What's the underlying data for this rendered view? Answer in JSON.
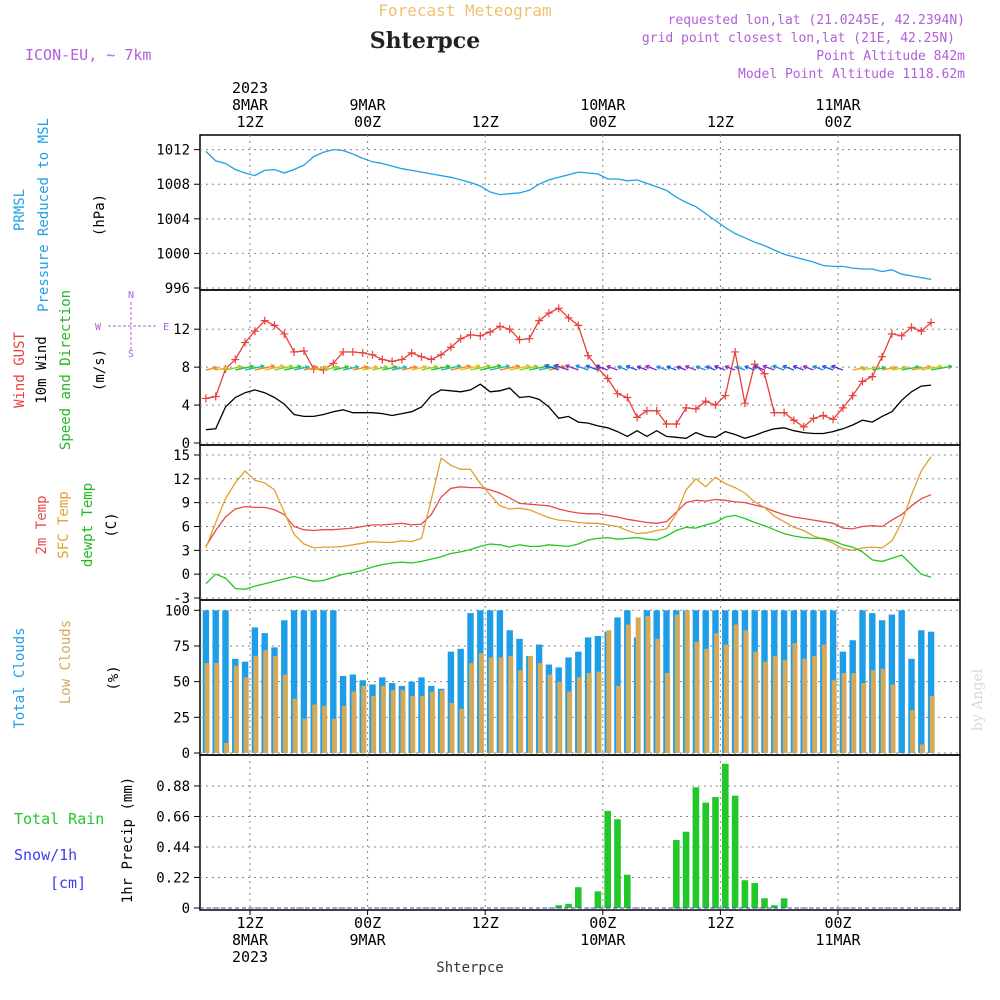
{
  "header": {
    "title": "Forecast Meteogram",
    "location": "Shterpce",
    "model": "ICON-EU, ~ 7km",
    "requested": "requested lon,lat (21.0245E, 42.2394N)",
    "gridpoint": "grid point closest lon,lat (21E, 42.25N)",
    "altitude": "Point Altitude 842m",
    "model_altitude": "Model Point Altitude 1118.62m",
    "footer": "Shterpce",
    "watermark": "by Angel"
  },
  "time_axis": {
    "top_labels": [
      {
        "hour": 0,
        "lines": [
          "2023",
          "8MAR",
          "12Z"
        ]
      },
      {
        "hour": 12,
        "lines": [
          "9MAR",
          "00Z"
        ]
      },
      {
        "hour": 24,
        "lines": [
          "12Z"
        ]
      },
      {
        "hour": 36,
        "lines": [
          "10MAR",
          "00Z"
        ]
      },
      {
        "hour": 48,
        "lines": [
          "12Z"
        ]
      },
      {
        "hour": 60,
        "lines": [
          "11MAR",
          "00Z"
        ]
      }
    ],
    "bottom_labels": [
      {
        "hour": 0,
        "lines": [
          "12Z",
          "8MAR",
          "2023"
        ]
      },
      {
        "hour": 12,
        "lines": [
          "00Z",
          "9MAR"
        ]
      },
      {
        "hour": 24,
        "lines": [
          "12Z"
        ]
      },
      {
        "hour": 36,
        "lines": [
          "00Z",
          "10MAR"
        ]
      },
      {
        "hour": 48,
        "lines": [
          "12Z"
        ]
      },
      {
        "hour": 60,
        "lines": [
          "00Z",
          "11MAR"
        ]
      }
    ]
  },
  "panels": {
    "pressure": {
      "labels": [
        "PRMSL",
        "Pressure Reduced to MSL"
      ],
      "unit": "(hPa)"
    },
    "wind": {
      "labels": [
        "Wind GUST",
        "10m Wind",
        "Speed and Direction"
      ],
      "unit": "(m/s)",
      "compass": {
        "n": "N",
        "e": "E",
        "s": "S",
        "w": "W"
      }
    },
    "temp": {
      "labels": [
        "2m Temp",
        "SFC Temp",
        "dewpt Temp"
      ],
      "unit": "(C)"
    },
    "clouds": {
      "labels": [
        "Total Clouds",
        "Low Clouds"
      ],
      "unit": "(%)"
    },
    "precip": {
      "labels": [
        "Total  Rain",
        "Snow/1h",
        "[cm]"
      ],
      "unit": "1hr Precip (mm)"
    }
  },
  "colors": {
    "pressure": "#1ea0e6",
    "gust": "#e8403c",
    "wind": "#000000",
    "temp2m": "#e84a4a",
    "sfc": "#e0a030",
    "dewpt": "#22c822",
    "total_clouds": "#1e9ee8",
    "low_clouds": "#d4aa5a",
    "rain": "#22c82a",
    "snow": "#3c3cf0",
    "header": "#b060d8",
    "title_faint": "#f0c070"
  },
  "chart_data": [
    {
      "type": "line",
      "title": "PRMSL Pressure Reduced to MSL",
      "ylabel": "hPa",
      "x_start_hour": -4.5,
      "x_step": 1,
      "ylim": [
        996,
        1013
      ],
      "yticks": [
        996,
        1000,
        1004,
        1008,
        1012
      ],
      "series": [
        {
          "name": "PRMSL",
          "values": [
            1011.8,
            1010.7,
            1010.4,
            1009.7,
            1009.3,
            1009.0,
            1009.6,
            1009.7,
            1009.3,
            1009.7,
            1010.2,
            1011.2,
            1011.7,
            1012.0,
            1011.9,
            1011.5,
            1011.0,
            1010.6,
            1010.4,
            1010.1,
            1009.8,
            1009.6,
            1009.4,
            1009.2,
            1009.0,
            1008.8,
            1008.5,
            1008.2,
            1007.8,
            1007.1,
            1006.8,
            1006.9,
            1007.0,
            1007.3,
            1008.0,
            1008.5,
            1008.8,
            1009.1,
            1009.4,
            1009.3,
            1009.2,
            1008.6,
            1008.6,
            1008.4,
            1008.5,
            1008.1,
            1007.7,
            1007.3,
            1006.5,
            1005.9,
            1005.4,
            1004.6,
            1003.8,
            1003.0,
            1002.3,
            1001.8,
            1001.3,
            1000.9,
            1000.4,
            999.9,
            999.6,
            999.3,
            999.0,
            998.6,
            998.5,
            998.5,
            998.3,
            998.2,
            998.2,
            997.9,
            998.1,
            997.6,
            997.4,
            997.2,
            997.0
          ]
        }
      ]
    },
    {
      "type": "line",
      "title": "Wind GUST / 10m Wind",
      "ylabel": "m/s",
      "x_start_hour": -4.5,
      "x_step": 1,
      "ylim": [
        0,
        15.5
      ],
      "yticks": [
        0,
        4,
        8,
        12
      ],
      "series": [
        {
          "name": "Wind GUST",
          "values": [
            4.7,
            4.9,
            7.8,
            8.8,
            10.6,
            11.8,
            12.9,
            12.4,
            11.5,
            9.6,
            9.7,
            7.8,
            7.7,
            8.4,
            9.6,
            9.6,
            9.5,
            9.3,
            8.8,
            8.6,
            8.8,
            9.5,
            9.1,
            8.8,
            9.3,
            10.1,
            11.0,
            11.4,
            11.3,
            11.7,
            12.3,
            12.0,
            10.9,
            11.0,
            12.9,
            13.7,
            14.2,
            13.2,
            12.4,
            9.2,
            7.9,
            6.8,
            5.2,
            4.8,
            2.7,
            3.4,
            3.4,
            2.0,
            2.0,
            3.7,
            3.6,
            4.4,
            4.0,
            5.0,
            9.6,
            4.2,
            8.3,
            7.3,
            3.2,
            3.2,
            2.4,
            1.7,
            2.6,
            2.9,
            2.5,
            3.7,
            5.0,
            6.5,
            7.0,
            9.1,
            11.5,
            11.3,
            12.2,
            11.8,
            12.7
          ]
        },
        {
          "name": "10m Wind",
          "values": [
            1.4,
            1.5,
            3.8,
            4.8,
            5.3,
            5.6,
            5.3,
            4.8,
            4.1,
            3.0,
            2.8,
            2.8,
            3.0,
            3.3,
            3.5,
            3.2,
            3.2,
            3.2,
            3.1,
            2.9,
            3.1,
            3.3,
            3.8,
            5.0,
            5.6,
            5.5,
            5.4,
            5.6,
            6.2,
            5.4,
            5.5,
            5.8,
            4.8,
            4.9,
            4.6,
            3.8,
            2.6,
            2.8,
            2.2,
            2.1,
            1.8,
            1.6,
            1.2,
            0.7,
            1.3,
            0.7,
            1.3,
            0.7,
            0.6,
            0.5,
            1.1,
            0.7,
            0.6,
            1.2,
            0.9,
            0.5,
            0.8,
            1.2,
            1.5,
            1.6,
            1.3,
            1.1,
            1.0,
            1.0,
            1.2,
            1.5,
            1.9,
            2.4,
            2.2,
            2.8,
            3.3,
            4.5,
            5.4,
            6.0,
            6.1
          ]
        }
      ]
    },
    {
      "type": "line",
      "title": "Temperatures",
      "ylabel": "C",
      "x_start_hour": -4.5,
      "x_step": 1,
      "ylim": [
        -3,
        15.5
      ],
      "yticks": [
        -3,
        0,
        3,
        6,
        9,
        12,
        15
      ],
      "series": [
        {
          "name": "2m Temp",
          "values": [
            3.5,
            5.5,
            7.2,
            8.2,
            8.5,
            8.4,
            8.4,
            8.1,
            7.5,
            6.0,
            5.6,
            5.5,
            5.6,
            5.6,
            5.7,
            5.8,
            6.0,
            6.2,
            6.2,
            6.3,
            6.4,
            6.2,
            6.3,
            7.5,
            9.7,
            10.8,
            11.0,
            10.9,
            10.9,
            10.6,
            10.2,
            9.6,
            8.9,
            8.8,
            8.7,
            8.6,
            8.2,
            7.9,
            7.7,
            7.6,
            7.6,
            7.4,
            7.2,
            6.9,
            6.7,
            6.5,
            6.4,
            6.6,
            7.8,
            9.0,
            9.3,
            9.2,
            9.4,
            9.3,
            9.1,
            9.0,
            8.7,
            8.4,
            7.9,
            7.5,
            7.2,
            7.0,
            6.8,
            6.6,
            6.4,
            5.8,
            5.7,
            6.0,
            6.1,
            6.0,
            6.8,
            7.5,
            8.6,
            9.5,
            10.0
          ]
        },
        {
          "name": "SFC Temp",
          "values": [
            3.3,
            6.5,
            9.5,
            11.5,
            13.0,
            11.8,
            11.5,
            10.6,
            7.8,
            5.0,
            3.8,
            3.3,
            3.4,
            3.4,
            3.5,
            3.7,
            3.9,
            4.1,
            4.0,
            4.0,
            4.2,
            4.1,
            4.5,
            9.4,
            14.6,
            13.7,
            13.2,
            13.2,
            11.4,
            10.0,
            8.6,
            8.2,
            8.3,
            8.1,
            7.6,
            7.1,
            6.8,
            6.7,
            6.5,
            6.4,
            6.4,
            6.2,
            6.0,
            5.5,
            5.1,
            5.2,
            5.5,
            5.7,
            7.6,
            10.6,
            12.0,
            11.0,
            12.2,
            11.4,
            10.9,
            10.2,
            9.1,
            8.4,
            7.3,
            6.6,
            5.9,
            5.5,
            4.8,
            4.4,
            3.9,
            3.2,
            3.0,
            3.3,
            3.4,
            3.3,
            4.2,
            6.5,
            10.0,
            13.0,
            14.8
          ]
        },
        {
          "name": "dewpt Temp",
          "values": [
            -1.2,
            0.0,
            -0.5,
            -1.8,
            -1.9,
            -1.5,
            -1.2,
            -0.9,
            -0.6,
            -0.3,
            -0.6,
            -0.9,
            -0.8,
            -0.4,
            0.0,
            0.2,
            0.5,
            0.9,
            1.2,
            1.4,
            1.5,
            1.4,
            1.6,
            1.9,
            2.2,
            2.6,
            2.8,
            3.1,
            3.5,
            3.8,
            3.7,
            3.4,
            3.7,
            3.5,
            3.5,
            3.7,
            3.6,
            3.5,
            3.8,
            4.3,
            4.5,
            4.6,
            4.4,
            4.5,
            4.6,
            4.4,
            4.3,
            4.8,
            5.5,
            5.9,
            5.8,
            6.2,
            6.5,
            7.2,
            7.4,
            7.0,
            6.5,
            6.1,
            5.6,
            5.1,
            4.8,
            4.6,
            4.5,
            4.5,
            4.2,
            3.7,
            3.4,
            2.8,
            1.8,
            1.6,
            2.0,
            2.4,
            1.2,
            0.0,
            -0.4
          ]
        }
      ]
    },
    {
      "type": "bar",
      "title": "Clouds",
      "ylabel": "%",
      "x_start_hour": -4.5,
      "x_step": 1,
      "ylim": [
        0,
        103
      ],
      "yticks": [
        0,
        25,
        50,
        75,
        100
      ],
      "series": [
        {
          "name": "Total Clouds",
          "values": [
            100,
            100,
            100,
            66,
            64,
            88,
            84,
            74,
            93,
            100,
            100,
            100,
            100,
            100,
            54,
            55,
            51,
            48,
            53,
            49,
            47,
            50,
            53,
            47,
            45,
            71,
            73,
            98,
            100,
            100,
            100,
            86,
            80,
            68,
            76,
            62,
            60,
            67,
            71,
            81,
            82,
            85,
            95,
            100,
            81,
            100,
            100,
            100,
            100,
            100,
            100,
            100,
            100,
            100,
            100,
            100,
            100,
            100,
            100,
            100,
            100,
            100,
            100,
            100,
            100,
            71,
            79,
            100,
            98,
            93,
            97,
            100,
            66,
            86,
            85
          ]
        },
        {
          "name": "Low Clouds",
          "values": [
            63,
            63,
            7,
            61,
            53,
            68,
            72,
            68,
            55,
            38,
            24,
            34,
            33,
            24,
            33,
            43,
            47,
            40,
            47,
            44,
            44,
            40,
            40,
            43,
            44,
            35,
            31,
            63,
            70,
            67,
            67,
            68,
            58,
            68,
            63,
            55,
            50,
            43,
            53,
            56,
            57,
            86,
            47,
            90,
            95,
            96,
            80,
            56,
            97,
            100,
            78,
            73,
            84,
            76,
            90,
            86,
            71,
            64,
            68,
            65,
            77,
            66,
            68,
            76,
            51,
            56,
            56,
            49,
            58,
            59,
            48,
            0,
            30,
            6,
            40
          ]
        }
      ]
    },
    {
      "type": "bar",
      "title": "1hr Precip",
      "ylabel": "mm",
      "x_start_hour": -4.5,
      "x_step": 1,
      "ylim": [
        0,
        1.06
      ],
      "yticks": [
        0,
        0.22,
        0.44,
        0.66,
        0.88
      ],
      "series": [
        {
          "name": "Total Rain",
          "values": [
            0,
            0,
            0,
            0,
            0,
            0,
            0,
            0,
            0,
            0,
            0,
            0,
            0,
            0,
            0,
            0,
            0,
            0,
            0,
            0,
            0,
            0,
            0,
            0,
            0,
            0,
            0,
            0,
            0,
            0,
            0,
            0,
            0,
            0,
            0,
            0,
            0.02,
            0.03,
            0.15,
            0,
            0.12,
            0.7,
            0.64,
            0.24,
            0,
            0,
            0,
            0,
            0.49,
            0.55,
            0.87,
            0.76,
            0.8,
            1.04,
            0.81,
            0.2,
            0.18,
            0.07,
            0.02,
            0.07,
            0,
            0,
            0,
            0,
            0,
            0,
            0,
            0,
            0,
            0,
            0,
            0,
            0,
            0,
            0
          ]
        }
      ]
    }
  ]
}
